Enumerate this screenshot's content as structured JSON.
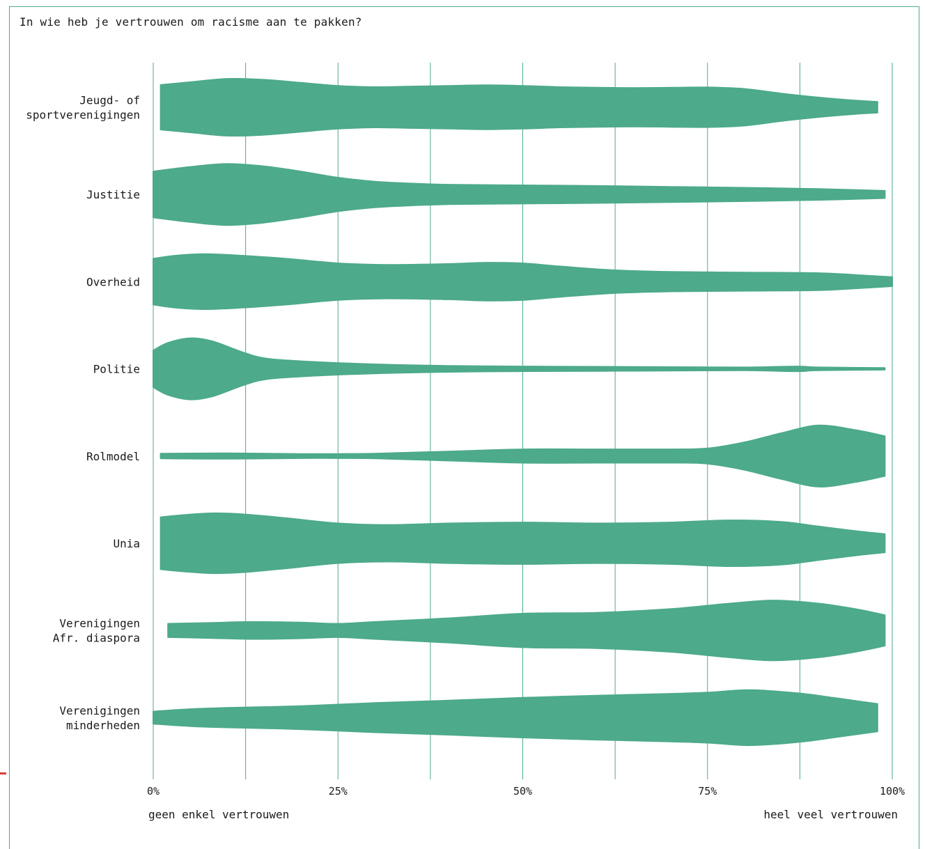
{
  "title": "In wie heb je vertrouwen om racisme aan te pakken?",
  "colors": {
    "violin": "#4daa8b",
    "grid": "#4daa8b",
    "frame": "#4daa8b",
    "accent": "#e53935"
  },
  "chart_data": {
    "type": "violin",
    "title": "In wie heb je vertrouwen om racisme aan te pakken?",
    "xlim": [
      0,
      100
    ],
    "x_ticks": [
      0,
      12.5,
      25,
      37.5,
      50,
      62.5,
      75,
      87.5,
      100
    ],
    "x_tick_labels": [
      {
        "value": 0,
        "label": "0%"
      },
      {
        "value": 25,
        "label": "25%"
      },
      {
        "value": 50,
        "label": "50%"
      },
      {
        "value": 75,
        "label": "75%"
      },
      {
        "value": 100,
        "label": "100%"
      }
    ],
    "x_min_label": "geen enkel vertrouwen",
    "x_max_label": "heel veel vertrouwen",
    "series": [
      {
        "label": [
          "Jeugd- of",
          "sportverenigingen"
        ],
        "density": [
          [
            1,
            0.73
          ],
          [
            5,
            0.82
          ],
          [
            10,
            0.93
          ],
          [
            15,
            0.9
          ],
          [
            20,
            0.8
          ],
          [
            25,
            0.7
          ],
          [
            30,
            0.66
          ],
          [
            35,
            0.68
          ],
          [
            40,
            0.7
          ],
          [
            45,
            0.72
          ],
          [
            50,
            0.7
          ],
          [
            55,
            0.66
          ],
          [
            60,
            0.64
          ],
          [
            65,
            0.63
          ],
          [
            70,
            0.64
          ],
          [
            75,
            0.65
          ],
          [
            80,
            0.6
          ],
          [
            85,
            0.45
          ],
          [
            90,
            0.32
          ],
          [
            95,
            0.22
          ],
          [
            98,
            0.18
          ]
        ]
      },
      {
        "label": [
          "Justitie"
        ],
        "density": [
          [
            0,
            0.75
          ],
          [
            5,
            0.9
          ],
          [
            10,
            1.0
          ],
          [
            15,
            0.92
          ],
          [
            20,
            0.75
          ],
          [
            25,
            0.55
          ],
          [
            30,
            0.42
          ],
          [
            35,
            0.36
          ],
          [
            40,
            0.32
          ],
          [
            50,
            0.3
          ],
          [
            60,
            0.28
          ],
          [
            70,
            0.25
          ],
          [
            80,
            0.22
          ],
          [
            90,
            0.18
          ],
          [
            99,
            0.12
          ]
        ]
      },
      {
        "label": [
          "Overheid"
        ],
        "density": [
          [
            0,
            0.75
          ],
          [
            3,
            0.85
          ],
          [
            7,
            0.9
          ],
          [
            12,
            0.85
          ],
          [
            18,
            0.75
          ],
          [
            25,
            0.6
          ],
          [
            32,
            0.55
          ],
          [
            40,
            0.58
          ],
          [
            45,
            0.62
          ],
          [
            50,
            0.6
          ],
          [
            55,
            0.5
          ],
          [
            62,
            0.38
          ],
          [
            70,
            0.32
          ],
          [
            80,
            0.3
          ],
          [
            90,
            0.28
          ],
          [
            95,
            0.22
          ],
          [
            100,
            0.15
          ]
        ]
      },
      {
        "label": [
          "Politie"
        ],
        "density": [
          [
            0,
            0.6
          ],
          [
            2,
            0.85
          ],
          [
            5,
            1.0
          ],
          [
            8,
            0.9
          ],
          [
            12,
            0.55
          ],
          [
            15,
            0.35
          ],
          [
            20,
            0.25
          ],
          [
            30,
            0.15
          ],
          [
            40,
            0.1
          ],
          [
            50,
            0.08
          ],
          [
            60,
            0.07
          ],
          [
            70,
            0.06
          ],
          [
            80,
            0.05
          ],
          [
            87,
            0.08
          ],
          [
            90,
            0.05
          ],
          [
            99,
            0.03
          ]
        ]
      },
      {
        "label": [
          "Rolmodel"
        ],
        "density": [
          [
            1,
            0.08
          ],
          [
            10,
            0.09
          ],
          [
            20,
            0.07
          ],
          [
            25,
            0.07
          ],
          [
            30,
            0.08
          ],
          [
            40,
            0.15
          ],
          [
            50,
            0.22
          ],
          [
            60,
            0.22
          ],
          [
            70,
            0.22
          ],
          [
            75,
            0.25
          ],
          [
            80,
            0.45
          ],
          [
            85,
            0.75
          ],
          [
            90,
            1.0
          ],
          [
            95,
            0.85
          ],
          [
            99,
            0.65
          ]
        ]
      },
      {
        "label": [
          "Unia"
        ],
        "density": [
          [
            1,
            0.85
          ],
          [
            4,
            0.92
          ],
          [
            8,
            0.98
          ],
          [
            12,
            0.95
          ],
          [
            18,
            0.82
          ],
          [
            25,
            0.65
          ],
          [
            32,
            0.6
          ],
          [
            40,
            0.65
          ],
          [
            50,
            0.68
          ],
          [
            60,
            0.65
          ],
          [
            70,
            0.68
          ],
          [
            78,
            0.75
          ],
          [
            85,
            0.7
          ],
          [
            90,
            0.55
          ],
          [
            95,
            0.4
          ],
          [
            99,
            0.3
          ]
        ]
      },
      {
        "label": [
          "Verenigingen",
          "Afr. diaspora"
        ],
        "density": [
          [
            2,
            0.22
          ],
          [
            8,
            0.25
          ],
          [
            13,
            0.28
          ],
          [
            20,
            0.26
          ],
          [
            25,
            0.22
          ],
          [
            30,
            0.28
          ],
          [
            40,
            0.4
          ],
          [
            50,
            0.55
          ],
          [
            60,
            0.58
          ],
          [
            70,
            0.7
          ],
          [
            78,
            0.88
          ],
          [
            84,
            0.98
          ],
          [
            90,
            0.88
          ],
          [
            95,
            0.7
          ],
          [
            99,
            0.5
          ]
        ]
      },
      {
        "label": [
          "Verenigingen",
          "minderheden"
        ],
        "density": [
          [
            0,
            0.2
          ],
          [
            5,
            0.28
          ],
          [
            10,
            0.32
          ],
          [
            20,
            0.38
          ],
          [
            30,
            0.48
          ],
          [
            40,
            0.56
          ],
          [
            50,
            0.65
          ],
          [
            60,
            0.72
          ],
          [
            70,
            0.78
          ],
          [
            75,
            0.82
          ],
          [
            80,
            0.9
          ],
          [
            83,
            0.88
          ],
          [
            88,
            0.78
          ],
          [
            92,
            0.65
          ],
          [
            95,
            0.55
          ],
          [
            98,
            0.45
          ]
        ]
      }
    ]
  }
}
